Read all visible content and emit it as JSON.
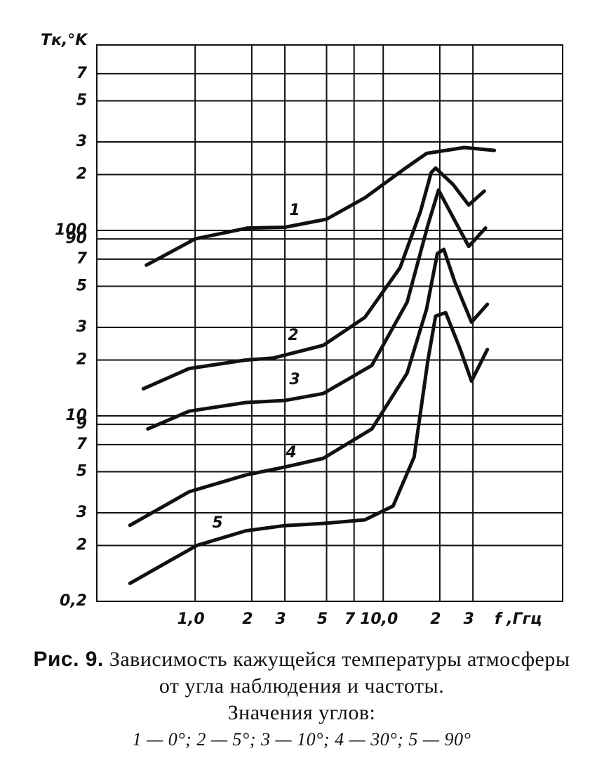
{
  "chart_data": {
    "type": "line",
    "x_label": "f ,Ггц",
    "y_label": "Tк,°K",
    "log_x": true,
    "log_y": true,
    "grid": true,
    "color": "#111111",
    "xlim": [
      0.3,
      90
    ],
    "ylim": [
      1,
      1000
    ],
    "xticks": [
      {
        "value": 1,
        "label": "1,0"
      },
      2,
      3,
      5,
      7,
      {
        "value": 10,
        "label": "10,0"
      },
      {
        "value": 20,
        "label": "2"
      },
      {
        "value": 30,
        "label": "3"
      }
    ],
    "yticks": [
      {
        "value": 1,
        "label": "0,2"
      },
      {
        "value": 2,
        "label": "2"
      },
      {
        "value": 3,
        "label": "3"
      },
      {
        "value": 5,
        "label": "5"
      },
      {
        "value": 7,
        "label": "7"
      },
      {
        "value": 9,
        "label": "9"
      },
      10,
      {
        "value": 20,
        "label": "2"
      },
      {
        "value": 30,
        "label": "3"
      },
      {
        "value": 50,
        "label": "5"
      },
      {
        "value": 70,
        "label": "7"
      },
      90,
      100,
      {
        "value": 200,
        "label": "2"
      },
      {
        "value": 300,
        "label": "3"
      },
      {
        "value": 500,
        "label": "5"
      },
      {
        "value": 700,
        "label": "7"
      }
    ],
    "series": [
      {
        "name": "1",
        "x": [
          0.55,
          1,
          1.9,
          3,
          5,
          8,
          13,
          17,
          27,
          39
        ],
        "values": [
          65,
          90,
          103,
          104,
          115,
          150,
          215,
          260,
          280,
          270
        ]
      },
      {
        "name": "2",
        "x": [
          0.53,
          0.93,
          1.86,
          2.6,
          4.8,
          8,
          12.3,
          15.8,
          18,
          19,
          23.5,
          28.5,
          34.5
        ],
        "values": [
          14,
          18,
          20,
          20.5,
          24,
          34,
          63,
          127,
          205,
          217,
          177,
          137,
          163
        ]
      },
      {
        "name": "3",
        "x": [
          0.56,
          0.93,
          1.86,
          3,
          4.8,
          8.7,
          13.4,
          17.3,
          19.7,
          22.6,
          28.5,
          35
        ],
        "values": [
          8.5,
          10.6,
          11.8,
          12.1,
          13.2,
          18.7,
          41,
          107,
          165,
          127,
          82,
          103
        ]
      },
      {
        "name": "4",
        "x": [
          0.45,
          0.93,
          1.86,
          3,
          4.8,
          8.7,
          13.4,
          17,
          19.4,
          21,
          24,
          29.5,
          35.8
        ],
        "values": [
          2.57,
          3.9,
          4.8,
          5.3,
          5.9,
          8.5,
          17,
          37.6,
          75,
          79,
          53,
          32,
          40
        ]
      },
      {
        "name": "5",
        "x": [
          0.45,
          1.02,
          1.86,
          3,
          4.8,
          8,
          11.3,
          14.6,
          17.3,
          19,
          21.5,
          25.5,
          29.5,
          35.8
        ],
        "values": [
          1.25,
          2.0,
          2.4,
          2.56,
          2.63,
          2.75,
          3.27,
          6.0,
          20,
          34.5,
          36,
          23.3,
          15.4,
          22.8
        ]
      }
    ],
    "caption": {
      "label": "Рис. 9.",
      "text": "Зависимость кажущейся температуры атмосферы от угла наблюдения и частоты.",
      "line3": "Значения углов:",
      "legend": "1 — 0°; 2 — 5°; 3 — 10°; 4 — 30°; 5 — 90°"
    }
  }
}
